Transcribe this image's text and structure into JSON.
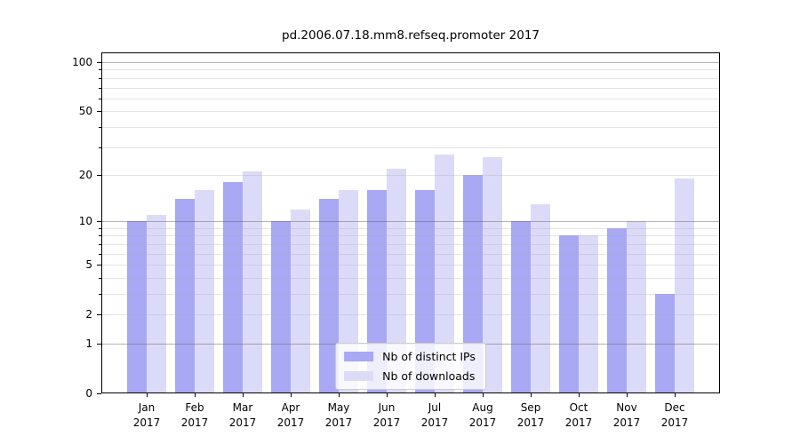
{
  "chart_data": {
    "type": "bar",
    "title": "pd.2006.07.18.mm8.refseq.promoter 2017",
    "categories": [
      "Jan",
      "Feb",
      "Mar",
      "Apr",
      "May",
      "Jun",
      "Jul",
      "Aug",
      "Sep",
      "Oct",
      "Nov",
      "Dec"
    ],
    "year_label": "2017",
    "series": [
      {
        "name": "Nb of distinct IPs",
        "color": "#a8a8f4",
        "values": [
          10,
          14,
          18,
          10,
          14,
          16,
          16,
          20,
          10,
          8,
          9,
          3
        ]
      },
      {
        "name": "Nb of downloads",
        "color": "#dbdbf8",
        "values": [
          11,
          16,
          21,
          12,
          16,
          22,
          27,
          26,
          13,
          8,
          10,
          19
        ]
      }
    ],
    "xlabel": "",
    "ylabel": "",
    "y_scale": "log10(1+y)",
    "ylim": [
      0,
      115
    ],
    "yticks": [
      0,
      1,
      2,
      5,
      10,
      20,
      50,
      100
    ],
    "major_gridlines": [
      1,
      10,
      100
    ],
    "minor_gridlines": [
      2,
      3,
      4,
      5,
      6,
      7,
      8,
      9,
      20,
      30,
      40,
      50,
      60,
      70,
      80,
      90
    ],
    "grid": true,
    "grid_over_bars": true,
    "legend_position": "lower center",
    "colors": {
      "grid_major": "#b4b4b4",
      "grid_minor": "#e0e0e0",
      "axis": "#000000",
      "background": "#ffffff"
    }
  }
}
